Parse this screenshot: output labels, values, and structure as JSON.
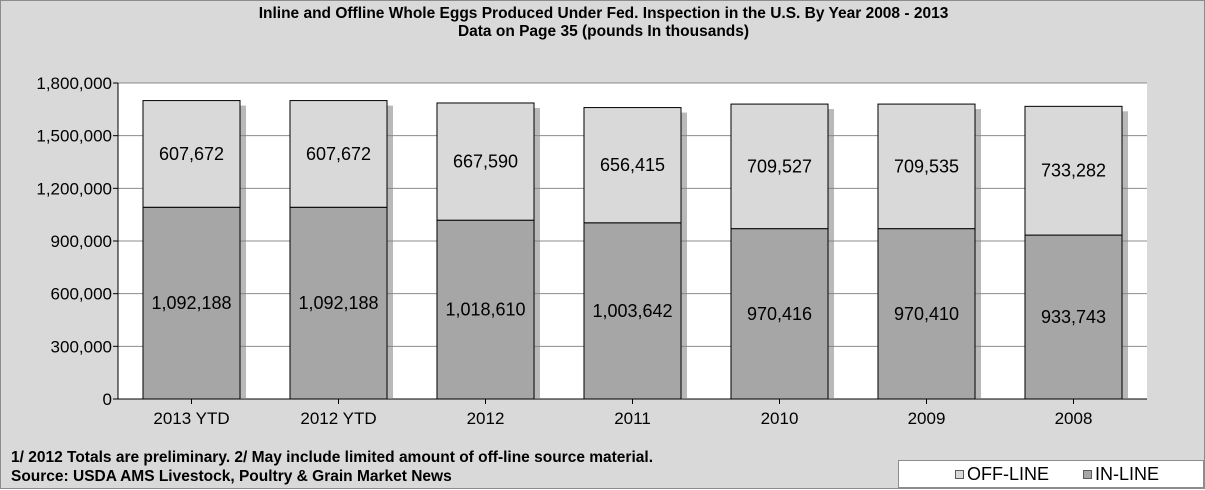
{
  "chart_data": {
    "type": "bar",
    "stacked": true,
    "title": "Inline and Offline Whole Eggs Produced Under Fed. Inspection in the U.S.   By Year 2008 - 2013",
    "subtitle": "Data on Page 35 (pounds In thousands)",
    "xlabel": "",
    "ylabel": "",
    "ylim": [
      0,
      1800000
    ],
    "yticks": [
      0,
      300000,
      600000,
      900000,
      1200000,
      1500000,
      1800000
    ],
    "ytick_labels": [
      "0",
      "300,000",
      "600,000",
      "900,000",
      "1,200,000",
      "1,500,000",
      "1,800,000"
    ],
    "grid": true,
    "legend_position": "bottom-right",
    "categories": [
      "2013 YTD",
      "2012 YTD",
      "2012",
      "2011",
      "2010",
      "2009",
      "2008"
    ],
    "series": [
      {
        "name": "IN-LINE",
        "color": "#a6a6a6",
        "values": [
          1092188,
          1092188,
          1018610,
          1003642,
          970416,
          970410,
          933743
        ],
        "labels": [
          "1,092,188",
          "1,092,188",
          "1,018,610",
          "1,003,642",
          "970,416",
          "970,410",
          "933,743"
        ]
      },
      {
        "name": "OFF-LINE",
        "color": "#d9d9d9",
        "values": [
          607672,
          607672,
          667590,
          656415,
          709527,
          709535,
          733282
        ],
        "labels": [
          "607,672",
          "607,672",
          "667,590",
          "656,415",
          "709,527",
          "709,535",
          "733,282"
        ]
      }
    ]
  },
  "footnotes": {
    "line1": "1/ 2012 Totals are preliminary.  2/ May include limited amount of off-line source material.",
    "line2": "Source: USDA AMS Livestock, Poultry & Grain Market News"
  },
  "legend": {
    "off_line": "OFF-LINE",
    "in_line": "IN-LINE"
  },
  "colors": {
    "background": "#d9d9d9",
    "plot_background": "#ffffff",
    "in_line": "#a6a6a6",
    "off_line": "#d9d9d9"
  }
}
